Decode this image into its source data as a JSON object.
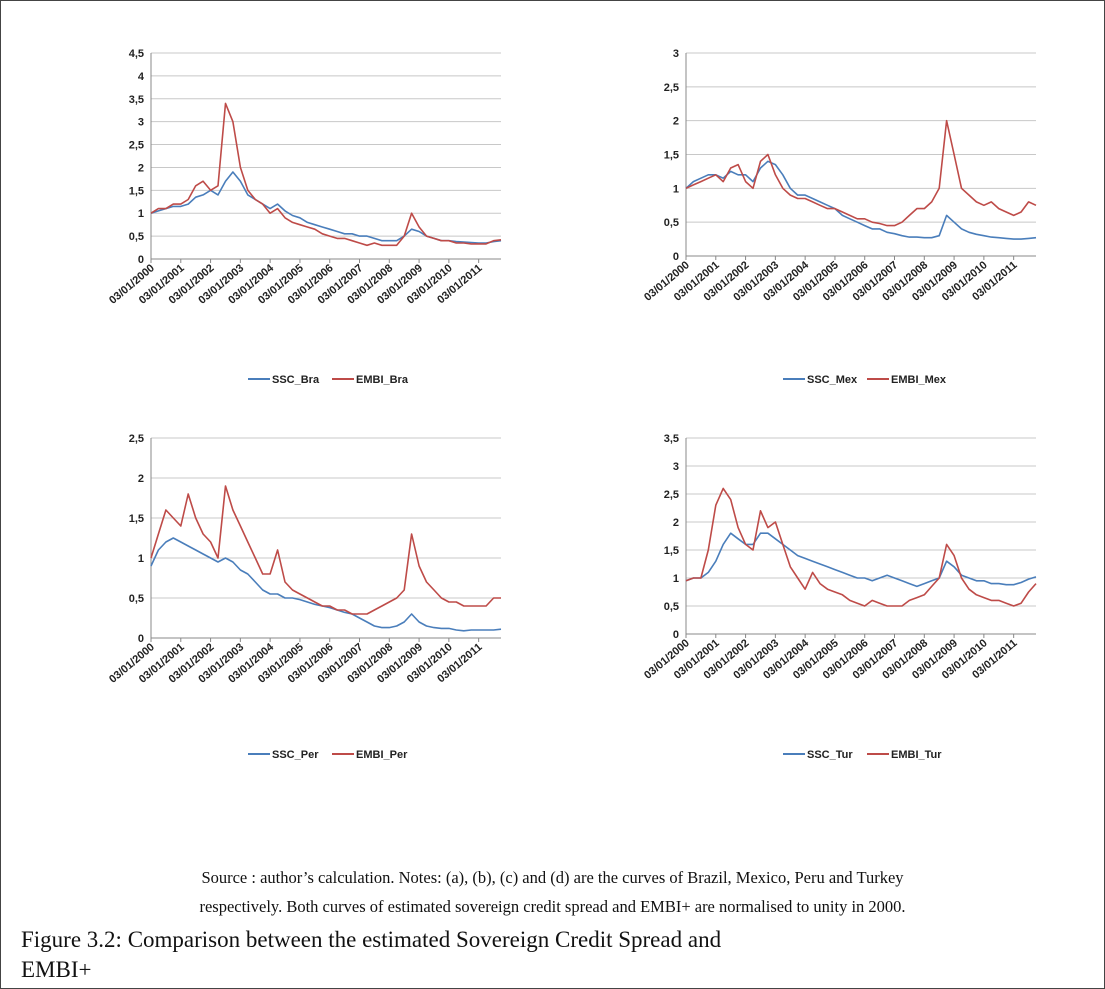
{
  "chart_data": [
    {
      "type": "line",
      "categories": [
        "03/01/2000",
        null,
        null,
        null,
        "03/01/2001",
        null,
        null,
        null,
        "03/01/2002",
        null,
        null,
        null,
        "03/01/2003",
        null,
        null,
        null,
        "03/01/2004",
        null,
        null,
        null,
        "03/01/2005",
        null,
        null,
        null,
        "03/01/2006",
        null,
        null,
        null,
        "03/01/2007",
        null,
        null,
        null,
        "03/01/2008",
        null,
        null,
        null,
        "03/01/2009",
        null,
        null,
        null,
        "03/01/2010",
        null,
        null,
        null,
        "03/01/2011",
        null,
        null,
        null
      ],
      "series": [
        {
          "name": "SSC_Bra",
          "color": "#4a7ebb",
          "values": [
            1.0,
            1.05,
            1.1,
            1.15,
            1.15,
            1.2,
            1.35,
            1.4,
            1.5,
            1.4,
            1.7,
            1.9,
            1.7,
            1.4,
            1.3,
            1.2,
            1.1,
            1.2,
            1.05,
            0.95,
            0.9,
            0.8,
            0.75,
            0.7,
            0.65,
            0.6,
            0.55,
            0.55,
            0.5,
            0.5,
            0.45,
            0.4,
            0.4,
            0.4,
            0.5,
            0.65,
            0.6,
            0.5,
            0.45,
            0.4,
            0.4,
            0.38,
            0.37,
            0.36,
            0.35,
            0.35,
            0.38,
            0.4
          ]
        },
        {
          "name": "EMBI_Bra",
          "color": "#be4b48",
          "values": [
            1.0,
            1.1,
            1.1,
            1.2,
            1.2,
            1.3,
            1.6,
            1.7,
            1.5,
            1.6,
            3.4,
            3.0,
            2.0,
            1.5,
            1.3,
            1.2,
            1.0,
            1.1,
            0.9,
            0.8,
            0.75,
            0.7,
            0.65,
            0.55,
            0.5,
            0.45,
            0.45,
            0.4,
            0.35,
            0.3,
            0.35,
            0.3,
            0.3,
            0.3,
            0.5,
            1.0,
            0.7,
            0.5,
            0.45,
            0.4,
            0.4,
            0.35,
            0.35,
            0.33,
            0.33,
            0.33,
            0.4,
            0.42
          ]
        }
      ],
      "ylim": [
        0,
        4.5
      ],
      "yticks": [
        0,
        {
          "value": 0.5,
          "label": "0,5"
        },
        1,
        {
          "value": 1.5,
          "label": "1,5"
        },
        2,
        {
          "value": 2.5,
          "label": "2,5"
        },
        3,
        {
          "value": 3.5,
          "label": "3,5"
        },
        4,
        {
          "value": 4.5,
          "label": "4,5"
        }
      ],
      "grid": true
    },
    {
      "type": "line",
      "categories": [
        "03/01/2000",
        null,
        null,
        null,
        "03/01/2001",
        null,
        null,
        null,
        "03/01/2002",
        null,
        null,
        null,
        "03/01/2003",
        null,
        null,
        null,
        "03/01/2004",
        null,
        null,
        null,
        "03/01/2005",
        null,
        null,
        null,
        "03/01/2006",
        null,
        null,
        null,
        "03/01/2007",
        null,
        null,
        null,
        "03/01/2008",
        null,
        null,
        null,
        "03/01/2009",
        null,
        null,
        null,
        "03/01/2010",
        null,
        null,
        null,
        "03/01/2011",
        null,
        null,
        null
      ],
      "series": [
        {
          "name": "SSC_Mex",
          "color": "#4a7ebb",
          "values": [
            1.0,
            1.1,
            1.15,
            1.2,
            1.2,
            1.15,
            1.25,
            1.2,
            1.2,
            1.1,
            1.3,
            1.4,
            1.35,
            1.2,
            1.0,
            0.9,
            0.9,
            0.85,
            0.8,
            0.75,
            0.7,
            0.6,
            0.55,
            0.5,
            0.45,
            0.4,
            0.4,
            0.35,
            0.33,
            0.3,
            0.28,
            0.28,
            0.27,
            0.27,
            0.3,
            0.6,
            0.5,
            0.4,
            0.35,
            0.32,
            0.3,
            0.28,
            0.27,
            0.26,
            0.25,
            0.25,
            0.26,
            0.27
          ]
        },
        {
          "name": "EMBI_Mex",
          "color": "#be4b48",
          "values": [
            1.0,
            1.05,
            1.1,
            1.15,
            1.2,
            1.1,
            1.3,
            1.35,
            1.1,
            1.0,
            1.4,
            1.5,
            1.2,
            1.0,
            0.9,
            0.85,
            0.85,
            0.8,
            0.75,
            0.7,
            0.7,
            0.65,
            0.6,
            0.55,
            0.55,
            0.5,
            0.48,
            0.45,
            0.45,
            0.5,
            0.6,
            0.7,
            0.7,
            0.8,
            1.0,
            2.0,
            1.5,
            1.0,
            0.9,
            0.8,
            0.75,
            0.8,
            0.7,
            0.65,
            0.6,
            0.65,
            0.8,
            0.75
          ]
        }
      ],
      "ylim": [
        0,
        3
      ],
      "yticks": [
        0,
        {
          "value": 0.5,
          "label": "0,5"
        },
        1,
        {
          "value": 1.5,
          "label": "1,5"
        },
        2,
        {
          "value": 2.5,
          "label": "2,5"
        },
        3
      ],
      "grid": true
    },
    {
      "type": "line",
      "categories": [
        "03/01/2000",
        null,
        null,
        null,
        "03/01/2001",
        null,
        null,
        null,
        "03/01/2002",
        null,
        null,
        null,
        "03/01/2003",
        null,
        null,
        null,
        "03/01/2004",
        null,
        null,
        null,
        "03/01/2005",
        null,
        null,
        null,
        "03/01/2006",
        null,
        null,
        null,
        "03/01/2007",
        null,
        null,
        null,
        "03/01/2008",
        null,
        null,
        null,
        "03/01/2009",
        null,
        null,
        null,
        "03/01/2010",
        null,
        null,
        null,
        "03/01/2011",
        null,
        null,
        null
      ],
      "series": [
        {
          "name": "SSC_Per",
          "color": "#4a7ebb",
          "values": [
            0.9,
            1.1,
            1.2,
            1.25,
            1.2,
            1.15,
            1.1,
            1.05,
            1.0,
            0.95,
            1.0,
            0.95,
            0.85,
            0.8,
            0.7,
            0.6,
            0.55,
            0.55,
            0.5,
            0.5,
            0.48,
            0.45,
            0.42,
            0.4,
            0.38,
            0.35,
            0.32,
            0.3,
            0.25,
            0.2,
            0.15,
            0.13,
            0.13,
            0.15,
            0.2,
            0.3,
            0.2,
            0.15,
            0.13,
            0.12,
            0.12,
            0.1,
            0.09,
            0.1,
            0.1,
            0.1,
            0.1,
            0.11
          ]
        },
        {
          "name": "EMBI_Per",
          "color": "#be4b48",
          "values": [
            1.0,
            1.3,
            1.6,
            1.5,
            1.4,
            1.8,
            1.5,
            1.3,
            1.2,
            1.0,
            1.9,
            1.6,
            1.4,
            1.2,
            1.0,
            0.8,
            0.8,
            1.1,
            0.7,
            0.6,
            0.55,
            0.5,
            0.45,
            0.4,
            0.4,
            0.35,
            0.35,
            0.3,
            0.3,
            0.3,
            0.35,
            0.4,
            0.45,
            0.5,
            0.6,
            1.3,
            0.9,
            0.7,
            0.6,
            0.5,
            0.45,
            0.45,
            0.4,
            0.4,
            0.4,
            0.4,
            0.5,
            0.5
          ]
        }
      ],
      "ylim": [
        0,
        2.5
      ],
      "yticks": [
        0,
        {
          "value": 0.5,
          "label": "0,5"
        },
        1,
        {
          "value": 1.5,
          "label": "1,5"
        },
        2,
        {
          "value": 2.5,
          "label": "2,5"
        }
      ],
      "grid": true
    },
    {
      "type": "line",
      "categories": [
        "03/01/2000",
        null,
        null,
        null,
        "03/01/2001",
        null,
        null,
        null,
        "03/01/2002",
        null,
        null,
        null,
        "03/01/2003",
        null,
        null,
        null,
        "03/01/2004",
        null,
        null,
        null,
        "03/01/2005",
        null,
        null,
        null,
        "03/01/2006",
        null,
        null,
        null,
        "03/01/2007",
        null,
        null,
        null,
        "03/01/2008",
        null,
        null,
        null,
        "03/01/2009",
        null,
        null,
        null,
        "03/01/2010",
        null,
        null,
        null,
        "03/01/2011",
        null,
        null,
        null
      ],
      "series": [
        {
          "name": "SSC_Tur",
          "color": "#4a7ebb",
          "values": [
            0.95,
            1.0,
            1.0,
            1.1,
            1.3,
            1.6,
            1.8,
            1.7,
            1.6,
            1.6,
            1.8,
            1.8,
            1.7,
            1.6,
            1.5,
            1.4,
            1.35,
            1.3,
            1.25,
            1.2,
            1.15,
            1.1,
            1.05,
            1.0,
            1.0,
            0.95,
            1.0,
            1.05,
            1.0,
            0.95,
            0.9,
            0.85,
            0.9,
            0.95,
            1.0,
            1.3,
            1.2,
            1.05,
            1.0,
            0.95,
            0.95,
            0.9,
            0.9,
            0.88,
            0.88,
            0.92,
            0.98,
            1.02
          ]
        },
        {
          "name": "EMBI_Tur",
          "color": "#be4b48",
          "values": [
            0.95,
            1.0,
            1.0,
            1.5,
            2.3,
            2.6,
            2.4,
            1.9,
            1.6,
            1.5,
            2.2,
            1.9,
            2.0,
            1.6,
            1.2,
            1.0,
            0.8,
            1.1,
            0.9,
            0.8,
            0.75,
            0.7,
            0.6,
            0.55,
            0.5,
            0.6,
            0.55,
            0.5,
            0.5,
            0.5,
            0.6,
            0.65,
            0.7,
            0.85,
            1.0,
            1.6,
            1.4,
            1.0,
            0.8,
            0.7,
            0.65,
            0.6,
            0.6,
            0.55,
            0.5,
            0.55,
            0.75,
            0.9
          ]
        }
      ],
      "ylim": [
        0,
        3.5
      ],
      "yticks": [
        0,
        {
          "value": 0.5,
          "label": "0,5"
        },
        1,
        {
          "value": 1.5,
          "label": "1,5"
        },
        2,
        {
          "value": 2.5,
          "label": "2,5"
        },
        3,
        {
          "value": 3.5,
          "label": "3,5"
        }
      ],
      "grid": true
    }
  ],
  "notes": [
    "Source : author’s calculation. Notes: (a), (b), (c) and (d) are the curves of Brazil, Mexico, Peru and Turkey",
    "respectively. Both curves of estimated sovereign credit spread and EMBI+ are normalised to unity in 2000."
  ],
  "caption": [
    "Figure 3.2:  Comparison between the estimated Sovereign Credit Spread and",
    "EMBI+"
  ]
}
